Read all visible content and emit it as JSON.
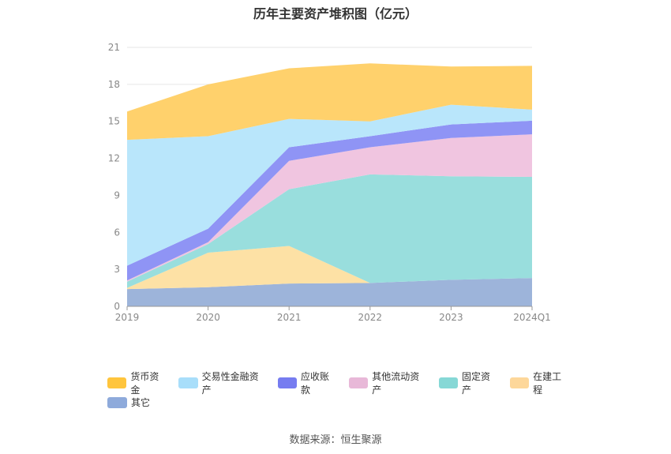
{
  "chart_data": {
    "type": "area",
    "title": "历年主要资产堆积图（亿元）",
    "categories": [
      "2019",
      "2020",
      "2021",
      "2022",
      "2023",
      "2024Q1"
    ],
    "ylim": [
      0,
      21
    ],
    "yticks": [
      0,
      3,
      6,
      9,
      12,
      15,
      18,
      21
    ],
    "stacked": true,
    "grid": true,
    "legend_position": "bottom",
    "series": [
      {
        "name": "其它",
        "color": "#9db4da",
        "values": [
          1.4,
          1.55,
          1.85,
          1.9,
          2.15,
          2.3
        ]
      },
      {
        "name": "在建工程",
        "color": "#fde1a5",
        "values": [
          0.1,
          2.8,
          3.05,
          0.0,
          0.0,
          0.0
        ]
      },
      {
        "name": "固定资产",
        "color": "#99dedd",
        "values": [
          0.5,
          0.7,
          4.6,
          8.8,
          8.4,
          8.2
        ]
      },
      {
        "name": "其他流动资产",
        "color": "#f0c5e0",
        "values": [
          0.1,
          0.15,
          2.3,
          2.2,
          3.1,
          3.45
        ]
      },
      {
        "name": "应收账款",
        "color": "#8f94f5",
        "values": [
          1.2,
          1.1,
          1.1,
          0.9,
          1.1,
          1.1
        ]
      },
      {
        "name": "交易性金融资产",
        "color": "#b9e6fb",
        "values": [
          10.2,
          7.5,
          2.3,
          1.2,
          1.6,
          0.9
        ]
      },
      {
        "name": "货币资金",
        "color": "#ffd16c",
        "values": [
          2.3,
          4.2,
          4.1,
          4.7,
          3.1,
          3.55
        ]
      }
    ],
    "legend_order": [
      "货币资金",
      "交易性金融资产",
      "应收账款",
      "其他流动资产",
      "固定资产",
      "在建工程",
      "其它"
    ],
    "legend_colors": {
      "货币资金": "#ffc53d",
      "交易性金融资产": "#a8defa",
      "应收账款": "#767cf0",
      "其他流动资产": "#e8b8d8",
      "固定资产": "#86d8d6",
      "在建工程": "#fdd79a",
      "其它": "#8eaadb"
    }
  },
  "source": "数据来源：恒生聚源"
}
